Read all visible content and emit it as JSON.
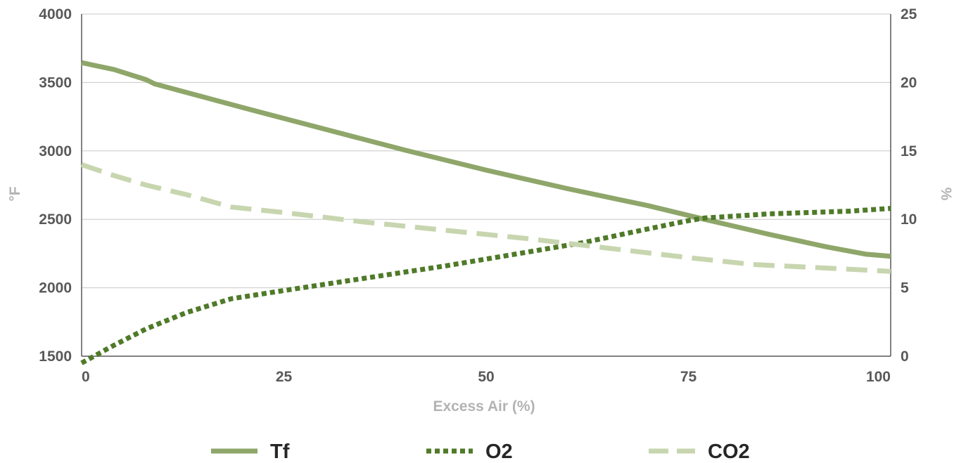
{
  "chart_data": {
    "type": "line",
    "xlabel": "Excess Air (%)",
    "ylabel_left": "°F",
    "ylabel_right": "%",
    "x_ticks": [
      0,
      25,
      50,
      75,
      100
    ],
    "x_tick_labels": [
      "0",
      "25",
      "50",
      "75",
      "100"
    ],
    "xlim": [
      0,
      100
    ],
    "ylim_left": [
      1500,
      4000
    ],
    "y_ticks_left": [
      1500,
      2000,
      2500,
      3000,
      3500,
      4000
    ],
    "y_tick_labels_left": [
      "1500",
      "2000",
      "2500",
      "3000",
      "3500",
      "4000"
    ],
    "ylim_right": [
      0,
      25
    ],
    "y_ticks_right": [
      0,
      5,
      10,
      15,
      20,
      25
    ],
    "y_tick_labels_right": [
      "0",
      "5",
      "10",
      "15",
      "20",
      "25"
    ],
    "grid": true,
    "legend_position": "bottom",
    "series": [
      {
        "name": "Tf",
        "axis": "left",
        "color": "#8fa66a",
        "style": "solid",
        "points": [
          [
            0,
            3645
          ],
          [
            4,
            3595
          ],
          [
            8,
            3520
          ],
          [
            9,
            3490
          ],
          [
            15,
            3395
          ],
          [
            20,
            3315
          ],
          [
            30,
            3160
          ],
          [
            40,
            3005
          ],
          [
            50,
            2860
          ],
          [
            60,
            2725
          ],
          [
            70,
            2600
          ],
          [
            77,
            2500
          ],
          [
            85,
            2390
          ],
          [
            92,
            2300
          ],
          [
            97,
            2245
          ],
          [
            100,
            2230
          ]
        ]
      },
      {
        "name": "O2",
        "axis": "right",
        "color": "#4f7a28",
        "style": "dotted",
        "points": [
          [
            0,
            -0.5
          ],
          [
            4,
            0.8
          ],
          [
            8,
            2.0
          ],
          [
            13,
            3.2
          ],
          [
            18.5,
            4.2
          ],
          [
            25,
            4.8
          ],
          [
            35,
            5.7
          ],
          [
            45,
            6.6
          ],
          [
            55,
            7.6
          ],
          [
            62,
            8.3
          ],
          [
            70,
            9.3
          ],
          [
            75,
            9.9
          ],
          [
            77,
            10.1
          ],
          [
            85,
            10.4
          ],
          [
            95,
            10.6
          ],
          [
            100,
            10.8
          ]
        ]
      },
      {
        "name": "CO2",
        "axis": "right",
        "color": "#c8d6b0",
        "style": "dashed",
        "points": [
          [
            0,
            14.0
          ],
          [
            4,
            13.2
          ],
          [
            8,
            12.5
          ],
          [
            13,
            11.8
          ],
          [
            18.5,
            10.9
          ],
          [
            25,
            10.5
          ],
          [
            35,
            9.8
          ],
          [
            45,
            9.2
          ],
          [
            55,
            8.6
          ],
          [
            65,
            7.9
          ],
          [
            75,
            7.2
          ],
          [
            83,
            6.7
          ],
          [
            90,
            6.5
          ],
          [
            100,
            6.2
          ]
        ]
      }
    ]
  }
}
